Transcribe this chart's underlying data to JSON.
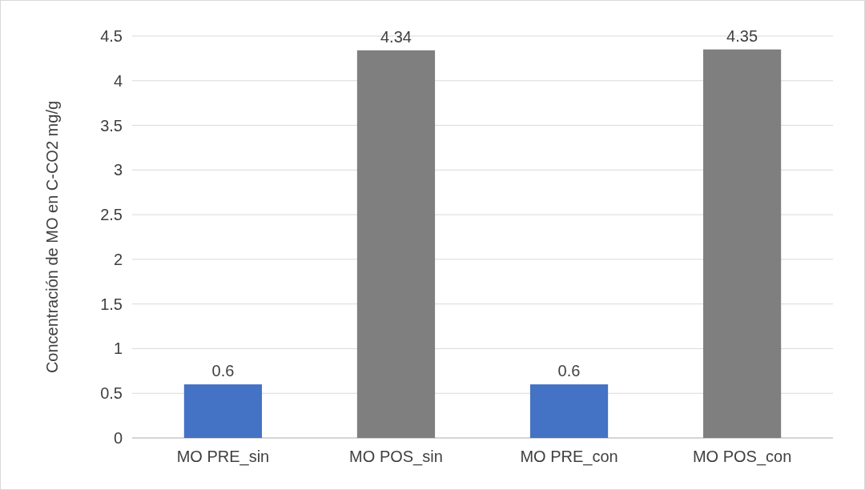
{
  "chart_data": {
    "type": "bar",
    "ylabel": "Concentración de MO en C-CO2 mg/g",
    "categories": [
      "MO PRE_sin",
      "MO POS_sin",
      "MO PRE_con",
      "MO POS_con"
    ],
    "values": [
      0.6,
      4.34,
      0.6,
      4.35
    ],
    "colors": [
      "#4472c4",
      "#7f7f7f",
      "#4472c4",
      "#7f7f7f"
    ],
    "ylim": [
      0,
      4.5
    ],
    "yticks": [
      0,
      0.5,
      1,
      1.5,
      2,
      2.5,
      3,
      3.5,
      4,
      4.5
    ],
    "grid": "y",
    "data_labels": true
  }
}
